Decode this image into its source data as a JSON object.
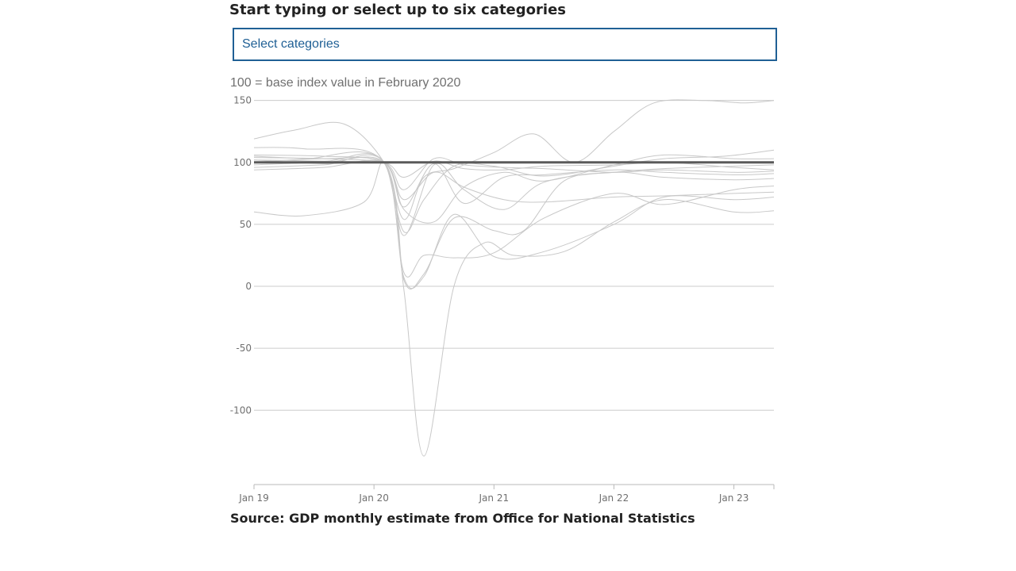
{
  "selector": {
    "heading": "Start typing or select up to six categories",
    "placeholder": "Select categories"
  },
  "source": "Source: GDP monthly estimate from Office for National Statistics",
  "colors": {
    "background_lines": "#c8c8c8",
    "baseline": "#5a5a5a",
    "grid": "#cccccc",
    "axis": "#bababa",
    "select_border": "#206095"
  },
  "chart_data": {
    "type": "line",
    "subtitle": "100 = base index value in February 2020",
    "title": "",
    "xlabel": "",
    "ylabel": "",
    "ylim": [
      -160,
      153
    ],
    "xlim": [
      "2019-01",
      "2023-05"
    ],
    "grid": true,
    "yticks": [
      150,
      100,
      50,
      0,
      -50,
      -100
    ],
    "xticks": [
      {
        "date": "2019-01",
        "label": "Jan 19"
      },
      {
        "date": "2020-01",
        "label": "Jan 20"
      },
      {
        "date": "2021-01",
        "label": "Jan 21"
      },
      {
        "date": "2022-01",
        "label": "Jan 22"
      },
      {
        "date": "2023-01",
        "label": "Jan 23"
      }
    ],
    "baseline": {
      "value": 100
    },
    "series": [
      {
        "x": [
          "2019-01",
          "2019-05",
          "2019-10",
          "2020-02",
          "2020-04",
          "2020-06",
          "2020-09",
          "2021-01",
          "2021-05",
          "2021-09",
          "2022-01",
          "2022-05",
          "2022-10",
          "2023-02",
          "2023-05"
        ],
        "values": [
          119,
          126,
          131,
          100,
          54,
          88,
          95,
          108,
          123,
          100,
          125,
          148,
          150,
          148,
          150
        ]
      },
      {
        "x": [
          "2019-01",
          "2019-06",
          "2019-12",
          "2020-02",
          "2020-04",
          "2020-06",
          "2020-09",
          "2021-01",
          "2021-06",
          "2022-01",
          "2022-06",
          "2022-12",
          "2023-05"
        ],
        "values": [
          60,
          57,
          68,
          100,
          44,
          70,
          97,
          97,
          89,
          97,
          103,
          105,
          110
        ]
      },
      {
        "x": [
          "2019-01",
          "2019-06",
          "2020-02",
          "2020-04",
          "2020-06",
          "2020-09",
          "2021-01",
          "2021-04",
          "2021-08",
          "2022-01",
          "2022-06",
          "2023-01",
          "2023-05"
        ],
        "values": [
          112,
          111,
          100,
          5,
          10,
          55,
          45,
          45,
          85,
          92,
          95,
          97,
          98
        ]
      },
      {
        "x": [
          "2019-01",
          "2019-06",
          "2020-02",
          "2020-04",
          "2020-06",
          "2020-09",
          "2020-12",
          "2021-03",
          "2021-08",
          "2022-01",
          "2022-06",
          "2023-01",
          "2023-05"
        ],
        "values": [
          105,
          103,
          100,
          -3,
          -137,
          0,
          35,
          25,
          28,
          52,
          70,
          60,
          61
        ]
      },
      {
        "x": [
          "2019-01",
          "2019-08",
          "2020-02",
          "2020-04",
          "2020-06",
          "2020-09",
          "2021-01",
          "2021-06",
          "2022-01",
          "2022-06",
          "2023-01",
          "2023-05"
        ],
        "values": [
          102,
          101,
          100,
          7,
          8,
          58,
          24,
          28,
          50,
          72,
          70,
          72
        ]
      },
      {
        "x": [
          "2019-01",
          "2019-08",
          "2020-02",
          "2020-04",
          "2020-06",
          "2020-09",
          "2021-01",
          "2021-06",
          "2022-01",
          "2022-06",
          "2023-01",
          "2023-05"
        ],
        "values": [
          96,
          98,
          100,
          11,
          25,
          23,
          27,
          55,
          75,
          66,
          78,
          81
        ]
      },
      {
        "x": [
          "2019-01",
          "2019-08",
          "2020-02",
          "2020-04",
          "2020-07",
          "2020-10",
          "2021-02",
          "2021-06",
          "2022-01",
          "2022-06",
          "2023-01",
          "2023-05"
        ],
        "values": [
          98,
          100,
          100,
          41,
          98,
          78,
          62,
          84,
          92,
          88,
          86,
          87
        ]
      },
      {
        "x": [
          "2019-01",
          "2019-08",
          "2020-02",
          "2020-04",
          "2020-07",
          "2020-10",
          "2021-02",
          "2021-06",
          "2022-01",
          "2022-06",
          "2023-01",
          "2023-05"
        ],
        "values": [
          100,
          103,
          100,
          64,
          99,
          67,
          88,
          90,
          94,
          92,
          90,
          91
        ]
      },
      {
        "x": [
          "2019-01",
          "2019-08",
          "2020-02",
          "2020-04",
          "2020-07",
          "2020-10",
          "2021-02",
          "2021-06",
          "2022-01",
          "2022-06",
          "2023-01",
          "2023-05"
        ],
        "values": [
          94,
          96,
          100,
          62,
          52,
          80,
          92,
          85,
          98,
          106,
          103,
          103
        ]
      },
      {
        "x": [
          "2019-01",
          "2019-08",
          "2020-02",
          "2020-04",
          "2020-07",
          "2020-10",
          "2021-02",
          "2021-06",
          "2022-01",
          "2022-06",
          "2023-01",
          "2023-05"
        ],
        "values": [
          102,
          99,
          100,
          78,
          103,
          98,
          96,
          95,
          92,
          94,
          92,
          93
        ]
      },
      {
        "x": [
          "2019-01",
          "2019-08",
          "2020-02",
          "2020-04",
          "2020-07",
          "2020-10",
          "2021-02",
          "2021-06",
          "2022-01",
          "2022-06",
          "2023-01",
          "2023-05"
        ],
        "values": [
          104,
          103,
          100,
          88,
          101,
          95,
          94,
          97,
          98,
          100,
          96,
          94
        ]
      },
      {
        "x": [
          "2019-01",
          "2019-08",
          "2020-02",
          "2020-04",
          "2020-07",
          "2020-10",
          "2021-02",
          "2021-06",
          "2022-01",
          "2022-06",
          "2023-01",
          "2023-05"
        ],
        "values": [
          106,
          105,
          100,
          70,
          92,
          80,
          70,
          68,
          72,
          73,
          75,
          76
        ]
      }
    ]
  }
}
